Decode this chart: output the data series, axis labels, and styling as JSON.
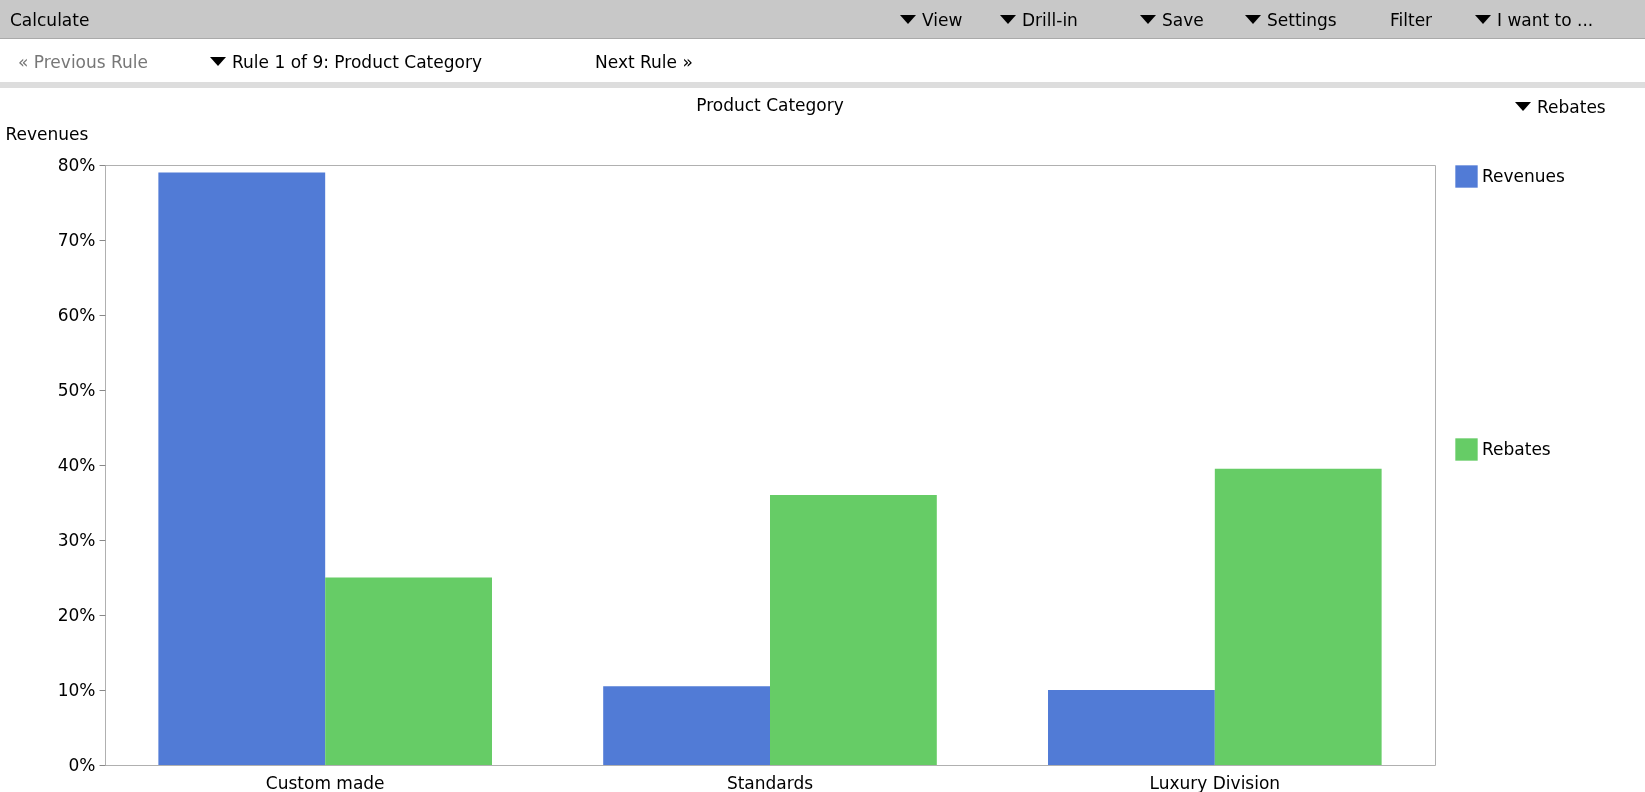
{
  "chart_data": {
    "type": "bar",
    "title": "Product Category",
    "ylabel": "Revenues",
    "categories": [
      "Custom made",
      "Standards",
      "Luxury Division"
    ],
    "series": [
      {
        "name": "Revenues",
        "color": "#517bd6",
        "values": [
          79,
          10.5,
          10
        ]
      },
      {
        "name": "Rebates",
        "color": "#66cc66",
        "values": [
          25,
          36,
          39.5
        ]
      }
    ],
    "ylim": [
      0,
      80
    ],
    "yticks": [
      {
        "value": 0,
        "label": "0%"
      },
      {
        "value": 10,
        "label": "10%"
      },
      {
        "value": 20,
        "label": "20%"
      },
      {
        "value": 30,
        "label": "30%"
      },
      {
        "value": 40,
        "label": "40%"
      },
      {
        "value": 50,
        "label": "50%"
      },
      {
        "value": 60,
        "label": "60%"
      },
      {
        "value": 70,
        "label": "70%"
      },
      {
        "value": 80,
        "label": "80%"
      }
    ],
    "grid": false,
    "legend": "top right",
    "annotations": [
      "Calculate",
      "View",
      "Drill-in",
      "Save",
      "Settings",
      "Filter",
      "I want to ...",
      "« Previous Rule",
      "Rule 1 of 9: Product Category",
      "Next Rule »",
      "Rebates"
    ]
  }
}
